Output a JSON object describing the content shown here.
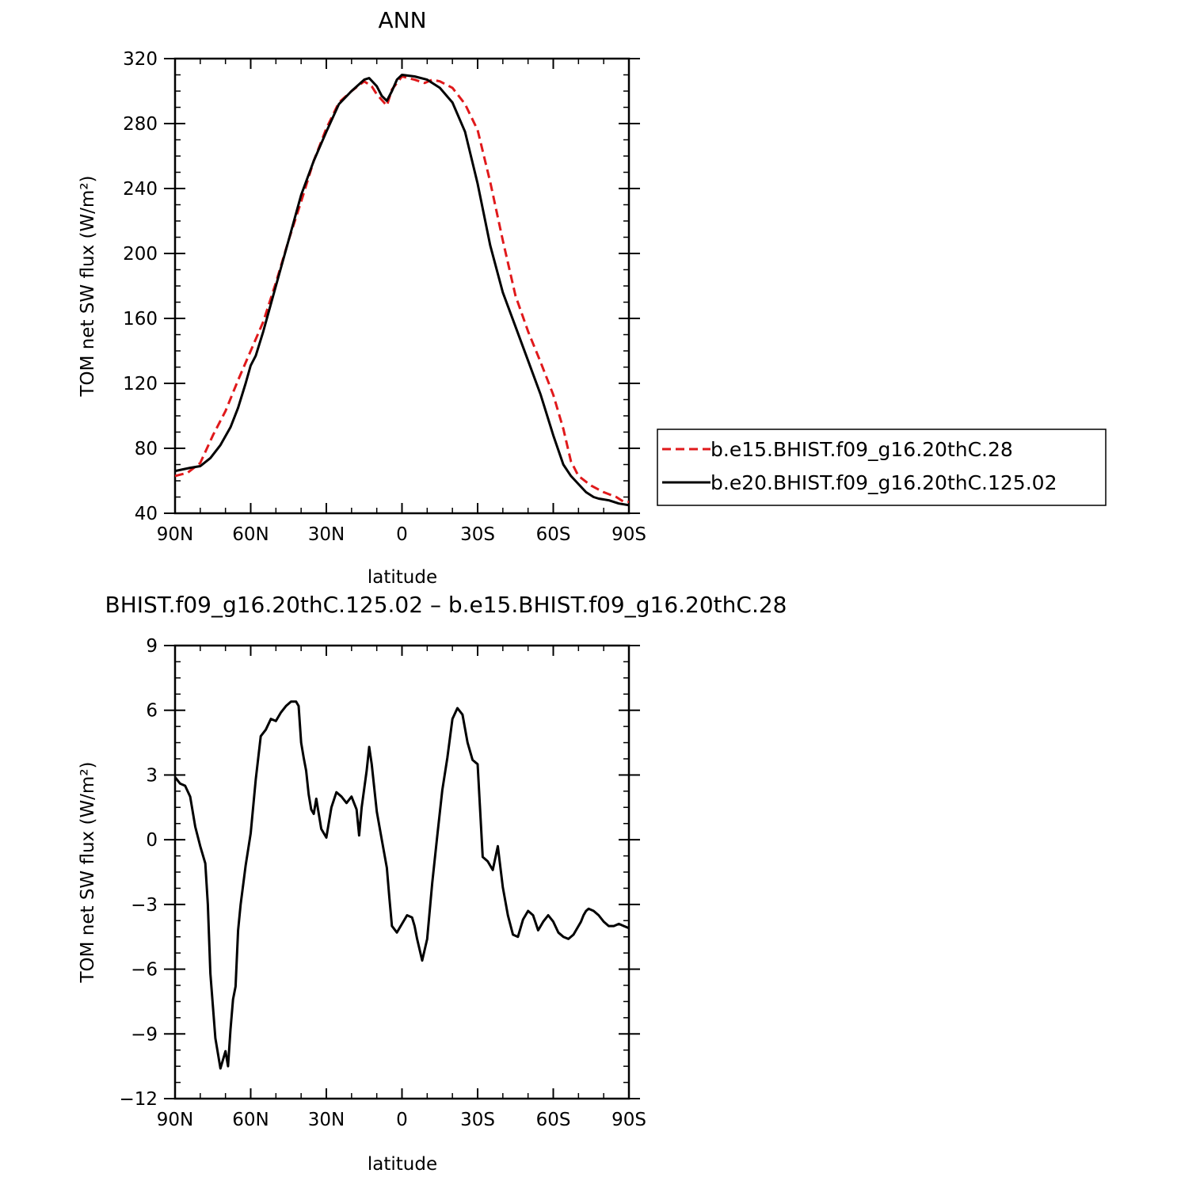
{
  "chart_data": [
    {
      "type": "line",
      "title": "ANN",
      "xlabel": "latitude",
      "ylabel": "TOM net SW flux (W/m²)",
      "xlim": [
        90,
        -90
      ],
      "ylim": [
        40,
        320
      ],
      "x_ticks": [
        90,
        60,
        30,
        0,
        -30,
        -60,
        -90
      ],
      "x_tick_labels": [
        "90N",
        "60N",
        "30N",
        "0",
        "30S",
        "60S",
        "90S"
      ],
      "y_ticks": [
        40,
        80,
        120,
        160,
        200,
        240,
        280,
        320
      ],
      "y_tick_labels": [
        "40",
        "80",
        "120",
        "160",
        "200",
        "240",
        "280",
        "320"
      ],
      "grid": false,
      "legend": {
        "placement": "right-outside"
      },
      "series": [
        {
          "name": "b.e15.BHIST.f09_g16.20thC.28",
          "color": "#e0191b",
          "dash": "dashed",
          "x": [
            90,
            85,
            80,
            75,
            70,
            65,
            60,
            55,
            50,
            45,
            40,
            35,
            30,
            25,
            20,
            15,
            12,
            10,
            6,
            4,
            0,
            -5,
            -9,
            -12,
            -15,
            -20,
            -25,
            -30,
            -35,
            -40,
            -45,
            -50,
            -55,
            -60,
            -64,
            -67,
            -70,
            -75,
            -80,
            -85,
            -88,
            -90
          ],
          "y": [
            63,
            65,
            71,
            88,
            103,
            122,
            140,
            158,
            182,
            208,
            232,
            257,
            277,
            293,
            300,
            306,
            303,
            298,
            291,
            301,
            309,
            307,
            305,
            307,
            306,
            302,
            292,
            276,
            244,
            208,
            174,
            152,
            133,
            113,
            92,
            72,
            63,
            57,
            53,
            50,
            47,
            47
          ]
        },
        {
          "name": "b.e20.BHIST.f09_g16.20thC.125.02",
          "color": "#000000",
          "dash": "solid",
          "x": [
            90,
            87,
            84,
            80,
            76,
            72,
            68,
            65,
            62,
            60,
            58,
            55,
            50,
            45,
            40,
            35,
            30,
            25,
            20,
            15,
            13,
            10,
            8,
            6,
            4,
            2,
            0,
            -5,
            -10,
            -15,
            -20,
            -25,
            -30,
            -35,
            -40,
            -45,
            -50,
            -55,
            -60,
            -64,
            -67,
            -70,
            -73,
            -76,
            -78,
            -82,
            -86,
            -90
          ],
          "y": [
            66,
            67,
            68,
            69,
            74,
            82,
            93,
            105,
            120,
            131,
            137,
            152,
            180,
            208,
            236,
            257,
            275,
            292,
            300,
            307,
            308,
            303,
            297,
            294,
            300,
            307,
            310,
            309,
            307,
            302,
            293,
            275,
            243,
            205,
            176,
            155,
            134,
            113,
            88,
            70,
            63,
            58,
            53,
            50,
            49,
            48,
            46,
            45
          ]
        }
      ]
    },
    {
      "type": "line",
      "title": "BHIST.f09_g16.20thC.125.02 – b.e15.BHIST.f09_g16.20thC.28",
      "xlabel": "latitude",
      "ylabel": "TOM net SW flux (W/m²)",
      "xlim": [
        90,
        -90
      ],
      "ylim": [
        -12,
        9
      ],
      "x_ticks": [
        90,
        60,
        30,
        0,
        -30,
        -60,
        -90
      ],
      "x_tick_labels": [
        "90N",
        "60N",
        "30N",
        "0",
        "30S",
        "60S",
        "90S"
      ],
      "y_ticks": [
        -12,
        -9,
        -6,
        -3,
        0,
        3,
        6,
        9
      ],
      "y_tick_labels": [
        "−12",
        "−9",
        "−6",
        "−3",
        "0",
        "3",
        "6",
        "9"
      ],
      "grid": false,
      "series": [
        {
          "color": "#000000",
          "dash": "solid",
          "x": [
            90,
            88,
            86,
            84,
            82,
            80,
            78,
            77,
            76,
            74,
            72,
            70,
            69,
            68,
            67,
            66,
            65,
            64,
            62,
            60,
            58,
            56,
            54,
            52,
            50,
            48,
            46,
            44,
            42,
            41,
            40,
            39,
            38,
            37,
            36,
            35,
            34,
            32,
            30,
            28,
            26,
            24,
            22,
            20,
            18,
            17,
            16,
            14,
            13,
            12,
            10,
            8,
            6,
            5,
            4,
            2,
            0,
            -2,
            -4,
            -5,
            -6,
            -8,
            -10,
            -12,
            -14,
            -16,
            -18,
            -20,
            -22,
            -24,
            -26,
            -28,
            -30,
            -32,
            -34,
            -36,
            -38,
            -40,
            -42,
            -44,
            -46,
            -48,
            -50,
            -52,
            -54,
            -56,
            -58,
            -60,
            -62,
            -64,
            -66,
            -68,
            -70,
            -71,
            -72,
            -73,
            -74,
            -76,
            -78,
            -80,
            -82,
            -84,
            -86,
            -88,
            -90
          ],
          "y": [
            2.9,
            2.6,
            2.5,
            2.0,
            0.6,
            -0.3,
            -1.1,
            -3.0,
            -6.2,
            -9.2,
            -10.6,
            -9.8,
            -10.5,
            -8.8,
            -7.4,
            -6.8,
            -4.2,
            -3.0,
            -1.2,
            0.3,
            2.8,
            4.8,
            5.1,
            5.6,
            5.5,
            5.9,
            6.2,
            6.4,
            6.4,
            6.2,
            4.5,
            3.8,
            3.2,
            2.1,
            1.4,
            1.2,
            1.9,
            0.5,
            0.1,
            1.5,
            2.2,
            2.0,
            1.7,
            2.0,
            1.4,
            0.2,
            1.5,
            3.2,
            4.3,
            3.5,
            1.3,
            0.0,
            -1.3,
            -2.7,
            -4.0,
            -4.3,
            -3.9,
            -3.5,
            -3.6,
            -4.0,
            -4.6,
            -5.6,
            -4.6,
            -2.0,
            0.2,
            2.3,
            3.8,
            5.6,
            6.1,
            5.8,
            4.5,
            3.7,
            3.5,
            -0.8,
            -1.0,
            -1.4,
            -0.3,
            -2.2,
            -3.5,
            -4.4,
            -4.5,
            -3.7,
            -3.3,
            -3.5,
            -4.2,
            -3.8,
            -3.5,
            -3.8,
            -4.3,
            -4.5,
            -4.6,
            -4.4,
            -4.0,
            -3.8,
            -3.5,
            -3.3,
            -3.2,
            -3.3,
            -3.5,
            -3.8,
            -4.0,
            -4.0,
            -3.9,
            -4.0,
            -4.1
          ]
        }
      ]
    }
  ]
}
